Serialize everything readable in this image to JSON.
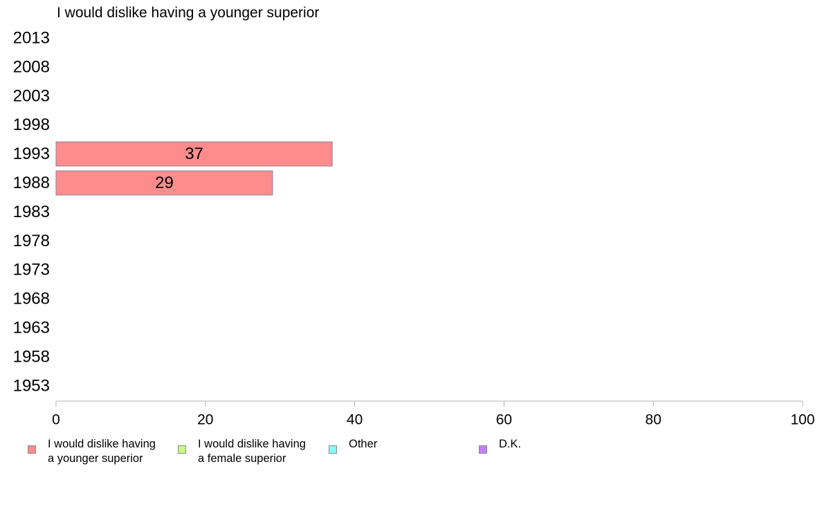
{
  "chart_data": {
    "type": "bar",
    "orientation": "horizontal",
    "title": "I would dislike having a younger superior",
    "categories": [
      "2013",
      "2008",
      "2003",
      "1998",
      "1993",
      "1988",
      "1983",
      "1978",
      "1973",
      "1968",
      "1963",
      "1958",
      "1953"
    ],
    "series": [
      {
        "name": "I would dislike having a younger superior",
        "color": "#ff8c8c",
        "values": [
          null,
          null,
          null,
          null,
          37,
          29,
          null,
          null,
          null,
          null,
          null,
          null,
          null
        ]
      }
    ],
    "xlim": [
      0,
      100
    ],
    "xticks": [
      0,
      20,
      40,
      60,
      80,
      100
    ],
    "grid": false,
    "legend_position": "bottom",
    "legend": [
      {
        "label": "I would dislike having\na younger superior",
        "color": "#ff8c8c"
      },
      {
        "label": "I would dislike having\na female superior",
        "color": "#c6ff80"
      },
      {
        "label": "Other",
        "color": "#80ffff"
      },
      {
        "label": "D.K.",
        "color": "#bf80ff"
      }
    ]
  }
}
